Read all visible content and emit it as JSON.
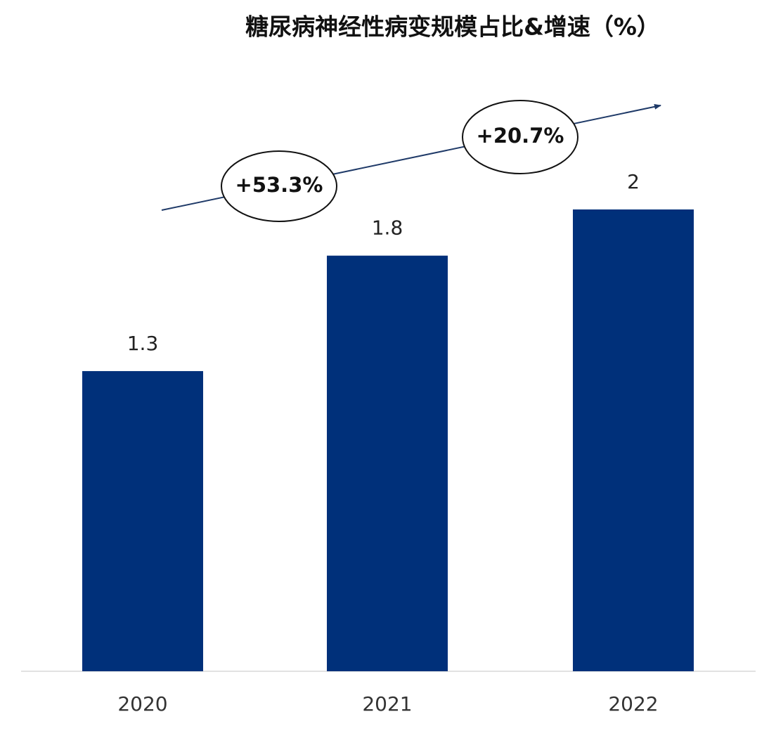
{
  "chart_data": {
    "type": "bar",
    "title": "糖尿病神经性病变规模占比&增速（%）",
    "categories": [
      "2020",
      "2021",
      "2022"
    ],
    "values": [
      1.3,
      1.8,
      2
    ],
    "color": "#00307a",
    "annotations": [
      "+53.3%",
      "+20.7%"
    ]
  }
}
